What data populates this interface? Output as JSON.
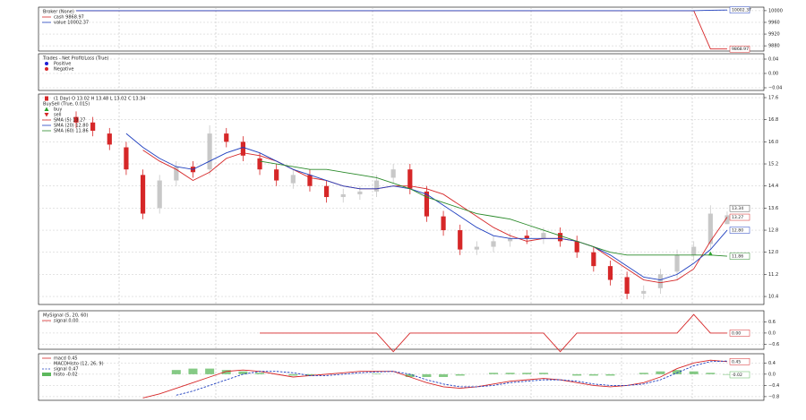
{
  "chart_data": [
    {
      "type": "line",
      "title": "Broker (None)",
      "ylim": [
        9862,
        10012
      ],
      "yticks": [
        9880,
        9920,
        9960,
        10000
      ],
      "grid": true,
      "series": [
        {
          "name": "cash 9868.97",
          "color": "#d62728",
          "last_label": "9868.97",
          "values": [
            10000,
            10000,
            10000,
            10000,
            10000,
            10000,
            10000,
            10000,
            10000,
            10000,
            10000,
            10000,
            10000,
            10000,
            10000,
            10000,
            10000,
            10000,
            10000,
            10000,
            10000,
            10000,
            10000,
            10000,
            10000,
            10000,
            10000,
            10000,
            10000,
            10000,
            10000,
            10000,
            10000,
            10000,
            10000,
            10000,
            10000,
            10000,
            9868.97,
            9868.97
          ]
        },
        {
          "name": "value 10002.37",
          "color": "#1f3fbf",
          "last_label": "10002.37",
          "values": [
            10000,
            10000,
            10000,
            10000,
            10000,
            10000,
            10000,
            10000,
            10000,
            10000,
            10000,
            10000,
            10000,
            10000,
            10000,
            10000,
            10000,
            10000,
            10000,
            10000,
            10000,
            10000,
            10000,
            10000,
            10000,
            10000,
            10000,
            10000,
            10000,
            10000,
            10000,
            10000,
            10000,
            10000,
            10000,
            10000,
            10000,
            10000,
            10001.5,
            10002.37
          ]
        }
      ]
    },
    {
      "type": "scatter",
      "title": "Trades - Net Profit/Loss (True)",
      "ylim": [
        -0.0475,
        0.055
      ],
      "yticks": [
        0.04,
        {
          "value": 0,
          "label": "0.00"
        },
        {
          "value": -0.04,
          "label": "−0.04"
        }
      ],
      "grid": true,
      "series": [
        {
          "name": "Positive",
          "color": "#1f1fd6",
          "values": []
        },
        {
          "name": "Negative",
          "color": "#d62728",
          "values": []
        }
      ]
    },
    {
      "type": "candlestick",
      "title": "(1 Day) O 13.02 H 13.48 L 13.02 C 13.34",
      "observer": "BuySell (True, 0.015)",
      "ylim": [
        10.11,
        17.73
      ],
      "yticks": [
        10.4,
        11.2,
        {
          "value": 12,
          "label": "12.0"
        },
        12.8,
        13.6,
        14.4,
        15.2,
        {
          "value": 16,
          "label": "16.0"
        },
        16.8,
        17.6
      ],
      "grid": true,
      "up_color": "#c8c8c8",
      "down_color": "#d62728",
      "last_label": "13.34",
      "open": [
        16.9,
        16.7,
        16.3,
        15.8,
        14.8,
        13.6,
        14.6,
        15.1,
        15.0,
        16.3,
        16.0,
        15.4,
        15.0,
        14.5,
        14.8,
        14.4,
        14.0,
        14.1,
        14.2,
        14.7,
        15.0,
        14.2,
        13.3,
        12.8,
        12.1,
        12.2,
        12.4,
        12.6,
        12.5,
        12.7,
        12.4,
        12.0,
        11.5,
        11.1,
        10.5,
        10.7,
        11.3,
        11.9,
        12.3,
        13.02
      ],
      "high": [
        17.1,
        16.9,
        16.5,
        16.0,
        15.0,
        14.8,
        15.3,
        15.3,
        16.6,
        16.5,
        16.2,
        15.6,
        15.2,
        15.0,
        15.0,
        14.6,
        14.3,
        14.4,
        14.8,
        15.2,
        15.2,
        14.4,
        13.5,
        13.0,
        12.4,
        12.6,
        12.7,
        12.8,
        12.9,
        12.9,
        12.6,
        12.2,
        11.7,
        11.3,
        10.8,
        11.4,
        12.1,
        12.4,
        13.7,
        13.48
      ],
      "low": [
        16.5,
        16.2,
        15.7,
        14.8,
        13.2,
        13.4,
        14.4,
        14.7,
        14.8,
        15.8,
        15.3,
        14.8,
        14.4,
        14.3,
        14.2,
        13.8,
        13.8,
        13.9,
        14.0,
        14.5,
        14.1,
        13.1,
        12.6,
        11.9,
        11.9,
        12.0,
        12.2,
        12.3,
        12.3,
        12.2,
        11.8,
        11.3,
        10.8,
        10.3,
        10.3,
        10.5,
        11.0,
        11.7,
        12.1,
        13.02
      ],
      "close": [
        16.7,
        16.4,
        15.9,
        15.0,
        13.4,
        14.6,
        15.1,
        14.9,
        16.3,
        16.0,
        15.5,
        15.0,
        14.6,
        14.8,
        14.4,
        14.0,
        14.1,
        14.2,
        14.6,
        15.0,
        14.3,
        13.3,
        12.8,
        12.1,
        12.2,
        12.4,
        12.5,
        12.5,
        12.7,
        12.4,
        12.0,
        11.5,
        11.0,
        10.5,
        10.6,
        11.2,
        11.9,
        12.2,
        13.4,
        13.34
      ],
      "markers": [
        {
          "name": "buy",
          "color": "#2ca02c",
          "shape": "up",
          "x": [
            38
          ],
          "values": [
            11.95
          ]
        },
        {
          "name": "sell",
          "color": "#d62728",
          "shape": "down",
          "x": [],
          "values": []
        }
      ],
      "series": [
        {
          "name": "SMA (5) 13.27",
          "color": "#d62728",
          "last_label": "13.27",
          "values": [
            null,
            null,
            null,
            null,
            15.7,
            15.3,
            15.0,
            14.6,
            14.9,
            15.4,
            15.6,
            15.5,
            15.3,
            15.0,
            14.7,
            14.6,
            14.4,
            14.3,
            14.3,
            14.4,
            14.4,
            14.3,
            14.1,
            13.7,
            13.3,
            12.9,
            12.6,
            12.4,
            12.5,
            12.5,
            12.4,
            12.2,
            11.8,
            11.4,
            11.0,
            10.9,
            11.0,
            11.4,
            12.4,
            13.27
          ]
        },
        {
          "name": "SMA (20) 12.80",
          "color": "#1f3fbf",
          "last_label": "12.80",
          "values": [
            null,
            null,
            null,
            16.3,
            15.8,
            15.4,
            15.1,
            15.0,
            15.3,
            15.6,
            15.8,
            15.6,
            15.3,
            15.0,
            14.8,
            14.6,
            14.4,
            14.3,
            14.3,
            14.4,
            14.3,
            14.1,
            13.7,
            13.3,
            12.9,
            12.6,
            12.5,
            12.5,
            12.5,
            12.5,
            12.4,
            12.2,
            11.9,
            11.5,
            11.1,
            11.0,
            11.2,
            11.6,
            12.1,
            12.8
          ]
        },
        {
          "name": "SMA (60) 11.86",
          "color": "#2a8a2a",
          "last_label": "11.86",
          "values": [
            null,
            null,
            null,
            null,
            null,
            null,
            null,
            null,
            null,
            null,
            null,
            15.3,
            15.2,
            15.1,
            15.0,
            15.0,
            14.9,
            14.8,
            14.7,
            14.5,
            14.3,
            14.0,
            13.8,
            13.6,
            13.4,
            13.3,
            13.2,
            13.0,
            12.8,
            12.6,
            12.4,
            12.2,
            12.0,
            11.9,
            11.9,
            11.9,
            11.9,
            11.9,
            11.9,
            11.86
          ]
        }
      ]
    },
    {
      "type": "line",
      "title": "MySignal (5, 20, 60)",
      "ylim": [
        -0.87,
        1.2
      ],
      "yticks": [
        0.6,
        {
          "value": 0,
          "label": "0.0"
        },
        {
          "value": -0.6,
          "label": "−0.6"
        }
      ],
      "grid": true,
      "series": [
        {
          "name": "signal 0.00",
          "color": "#d62728",
          "last_label": "0.00",
          "values": [
            null,
            null,
            null,
            null,
            null,
            null,
            null,
            null,
            null,
            null,
            null,
            0,
            0,
            0,
            0,
            0,
            0,
            0,
            0,
            -1,
            0,
            0,
            0,
            0,
            0,
            0,
            0,
            0,
            0,
            -1,
            0,
            0,
            0,
            0,
            0,
            0,
            0,
            1,
            0,
            0
          ]
        }
      ]
    },
    {
      "type": "macd",
      "title": "MACDHisto (12, 26, 9)",
      "ylim": [
        -0.93,
        0.73
      ],
      "yticks": [
        0.4,
        {
          "value": 0,
          "label": "0.0"
        },
        {
          "value": -0.4,
          "label": "−0.4"
        },
        {
          "value": -0.8,
          "label": "−0.8"
        }
      ],
      "grid": true,
      "series": [
        {
          "name": "macd 0.45",
          "color": "#d62728",
          "style": "line",
          "last_label": "0.45",
          "values": [
            null,
            null,
            null,
            null,
            -0.85,
            -0.7,
            -0.5,
            -0.3,
            -0.1,
            0.1,
            0.15,
            0.1,
            0.0,
            -0.1,
            -0.05,
            0.0,
            0.05,
            0.1,
            0.1,
            0.1,
            -0.1,
            -0.3,
            -0.45,
            -0.5,
            -0.45,
            -0.35,
            -0.25,
            -0.2,
            -0.15,
            -0.2,
            -0.3,
            -0.4,
            -0.45,
            -0.4,
            -0.3,
            -0.1,
            0.2,
            0.4,
            0.5,
            0.45
          ]
        },
        {
          "name": "signal 0.47",
          "color": "#1f3fbf",
          "style": "dashed",
          "values": [
            null,
            null,
            null,
            null,
            null,
            null,
            -0.75,
            -0.6,
            -0.4,
            -0.2,
            0.0,
            0.1,
            0.1,
            0.05,
            -0.05,
            -0.05,
            0.0,
            0.05,
            0.08,
            0.1,
            0.0,
            -0.2,
            -0.35,
            -0.45,
            -0.45,
            -0.4,
            -0.3,
            -0.25,
            -0.2,
            -0.2,
            -0.25,
            -0.35,
            -0.4,
            -0.4,
            -0.35,
            -0.2,
            0.05,
            0.3,
            0.45,
            0.47
          ]
        },
        {
          "name": "histo -0.02",
          "color": "#5cb85c",
          "style": "bar",
          "last_label": "-0.02",
          "values": [
            null,
            null,
            null,
            null,
            null,
            null,
            0.15,
            0.2,
            0.2,
            0.15,
            0.1,
            0.05,
            0.0,
            -0.05,
            -0.05,
            0.0,
            0.0,
            0.0,
            0.02,
            0.0,
            -0.1,
            -0.1,
            -0.1,
            -0.05,
            0.0,
            0.05,
            0.05,
            0.05,
            0.05,
            0.0,
            -0.05,
            -0.05,
            -0.05,
            0.0,
            0.05,
            0.1,
            0.15,
            0.1,
            0.05,
            -0.02
          ]
        }
      ]
    }
  ]
}
